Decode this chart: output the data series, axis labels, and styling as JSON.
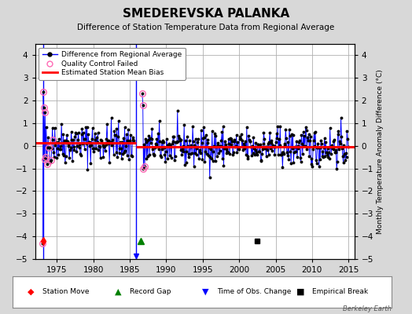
{
  "title": "SMEDEREVSKA PALANKA",
  "subtitle": "Difference of Station Temperature Data from Regional Average",
  "ylabel_right": "Monthly Temperature Anomaly Difference (°C)",
  "xlim": [
    1972.0,
    2015.8
  ],
  "ylim": [
    -5.0,
    4.5
  ],
  "yticks": [
    -5,
    -4,
    -3,
    -2,
    -1,
    0,
    1,
    2,
    3,
    4
  ],
  "xticks": [
    1975,
    1980,
    1985,
    1990,
    1995,
    2000,
    2005,
    2010,
    2015
  ],
  "background_color": "#d8d8d8",
  "plot_bg_color": "#ffffff",
  "grid_color": "#b0b0b0",
  "line_color": "#0000ff",
  "marker_color": "#000000",
  "qc_color": "#ff69b4",
  "bias_color": "#ff0000",
  "watermark": "Berkeley Earth",
  "vertical_line_1": 1973.08,
  "vertical_line_2": 1985.83,
  "record_gap_x": 1986.5,
  "station_move_x": 1973.08,
  "empirical_break_x": 2002.5,
  "obs_change_x": 1985.83,
  "bias_seg1_y": 0.13,
  "bias_seg2_y": -0.05,
  "seed": 42
}
